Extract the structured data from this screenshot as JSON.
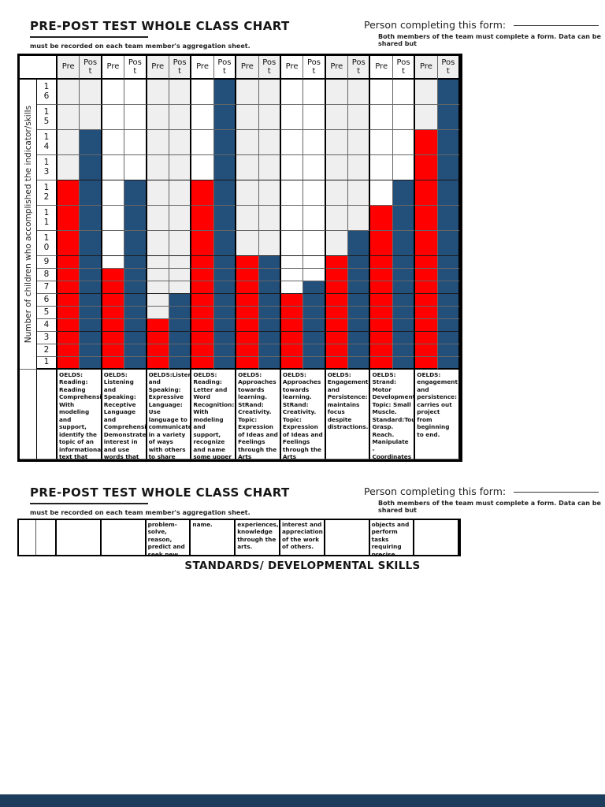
{
  "header": {
    "title": "PRE-POST TEST WHOLE CLASS CHART",
    "subnote": "must be recorded on each team member's aggregation sheet.",
    "person_label": "Person completing this form:",
    "person_note": "Both members of the team must complete a form.  Data can be shared but"
  },
  "standards_heading": "STANDARDS/ DEVELOPMENTAL SKILLS",
  "chart_data": {
    "type": "bar",
    "subtype": "grid-cell-bar-chart",
    "title": "PRE-POST TEST WHOLE CLASS CHART",
    "xlabel": "",
    "ylabel": "Number of children who accomplished the indicator/skills",
    "ylim": [
      0,
      16
    ],
    "grid": true,
    "legend_position": "column-headers",
    "y_ticks": [
      16,
      15,
      14,
      13,
      12,
      11,
      10,
      9,
      8,
      7,
      6,
      5,
      4,
      3,
      2,
      1
    ],
    "column_header_pre": "Pre",
    "column_header_post": "Post",
    "series": [
      {
        "name": "Pre",
        "color": "#fe0000",
        "values": [
          12,
          8,
          4,
          12,
          9,
          6,
          9,
          11,
          14
        ]
      },
      {
        "name": "Post",
        "color": "#234f7b",
        "values": [
          14,
          12,
          6,
          16,
          9,
          7,
          10,
          12,
          16
        ]
      }
    ],
    "empty_cell_colors": {
      "odd_pair": "#efefef",
      "even_pair": "#ffffff"
    },
    "categories": [
      "OELDS: Reading: Reading Comprehension: With modeling and support, identify the topic of an informational text that has been read aloud.",
      "OELDS: Listening and Speaking: Receptive Language and Comprehension: Demonstrate interest in and use words that are new or unfamiliar in conversation and play.",
      "OELDS:Listening and Speaking: Expressive Language: Use language to communicate in a variety of ways with others to share observations, ideas and experiences:",
      "OELDS: Reading: Letter and Word Recognition: With modeling and support, recognize and name some upper and lower case letters in addition to those in first",
      "OELDS: Approaches towards learning. StRand: Creativity. Topic: Expression of Ideas and Feelings through the Arts Standard: Expresses self.",
      "OELDS: Approaches towards learning. StRand: Creativity. Topic: Expression of Ideas and Feelings through the Arts  Standard: Expresses",
      "OELDS: Engagement and Persistence: maintains focus despite distractions.",
      "OELDS: Strand: Motor Development. Topic: Small Muscle. Standard:Touch. Grasp. Reach. Manipulate - Coordinates use of hands/fingers/wrist to manipulate",
      "OELDS: engagement and persistence: carries out project from beginning to end."
    ],
    "continuations": [
      "",
      "",
      "problem-solve, reason, predict and seek new information.",
      "name.",
      "experiences, knowledge through the arts.",
      "interest and appreciation of the work of others.",
      "",
      "objects and perform tasks requiring precise movements.",
      ""
    ]
  }
}
